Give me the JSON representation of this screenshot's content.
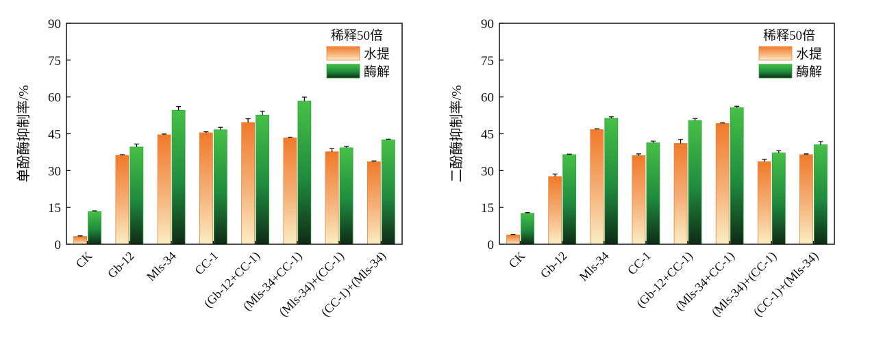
{
  "chart_data": [
    {
      "type": "bar",
      "title": "",
      "ylabel": "单酚酶抑制率/%",
      "xlabel": "",
      "ylim": [
        0,
        90
      ],
      "yticks": [
        "0",
        "15",
        "30",
        "45",
        "60",
        "75",
        "90"
      ],
      "categories": [
        "CK",
        "Gb-12",
        "Mls-34",
        "CC-1",
        "(Gb-12+CC-1)",
        "(Mls-34+CC-1)",
        "(Mls-34)+(CC-1)",
        "(CC-1)+(Mls-34)"
      ],
      "legend_title": "稀释50倍",
      "legend_position": "top-right",
      "grid": false,
      "series": [
        {
          "name": "水提",
          "color": "#f08a3c",
          "values": [
            3.2,
            36.2,
            44.6,
            45.4,
            49.6,
            43.3,
            37.7,
            33.6
          ],
          "errors": [
            0.2,
            0.3,
            0.3,
            0.4,
            1.5,
            0.3,
            1.3,
            0.3
          ]
        },
        {
          "name": "酶解",
          "color": "#3cb43c",
          "values": [
            13.3,
            39.6,
            54.5,
            46.6,
            52.6,
            58.3,
            39.3,
            42.5
          ],
          "errors": [
            0.3,
            1.2,
            1.6,
            1.0,
            1.6,
            1.6,
            0.5,
            0.3
          ]
        }
      ]
    },
    {
      "type": "bar",
      "title": "",
      "ylabel": "二酚酶抑制率/%",
      "xlabel": "",
      "ylim": [
        0,
        90
      ],
      "yticks": [
        "0",
        "15",
        "30",
        "45",
        "60",
        "75",
        "90"
      ],
      "categories": [
        "CK",
        "Gb-12",
        "Mls-34",
        "CC-1",
        "(Gb-12+CC-1)",
        "(Mls-34+CC-1)",
        "(Mls-34)+(CC-1)",
        "(CC-1)+(Mls-34)"
      ],
      "legend_title": "稀释50倍",
      "legend_position": "top-right",
      "grid": false,
      "series": [
        {
          "name": "水提",
          "color": "#f08a3c",
          "values": [
            3.8,
            27.6,
            46.7,
            36.1,
            41.1,
            49.2,
            33.6,
            36.5
          ],
          "errors": [
            0.2,
            1.0,
            0.3,
            0.7,
            1.6,
            0.2,
            1.0,
            0.3
          ]
        },
        {
          "name": "酶解",
          "color": "#3cb43c",
          "values": [
            12.6,
            36.5,
            51.3,
            41.3,
            50.4,
            55.6,
            37.2,
            40.5
          ],
          "errors": [
            0.3,
            0.2,
            0.6,
            0.7,
            0.8,
            0.6,
            0.9,
            1.3
          ]
        }
      ]
    }
  ]
}
